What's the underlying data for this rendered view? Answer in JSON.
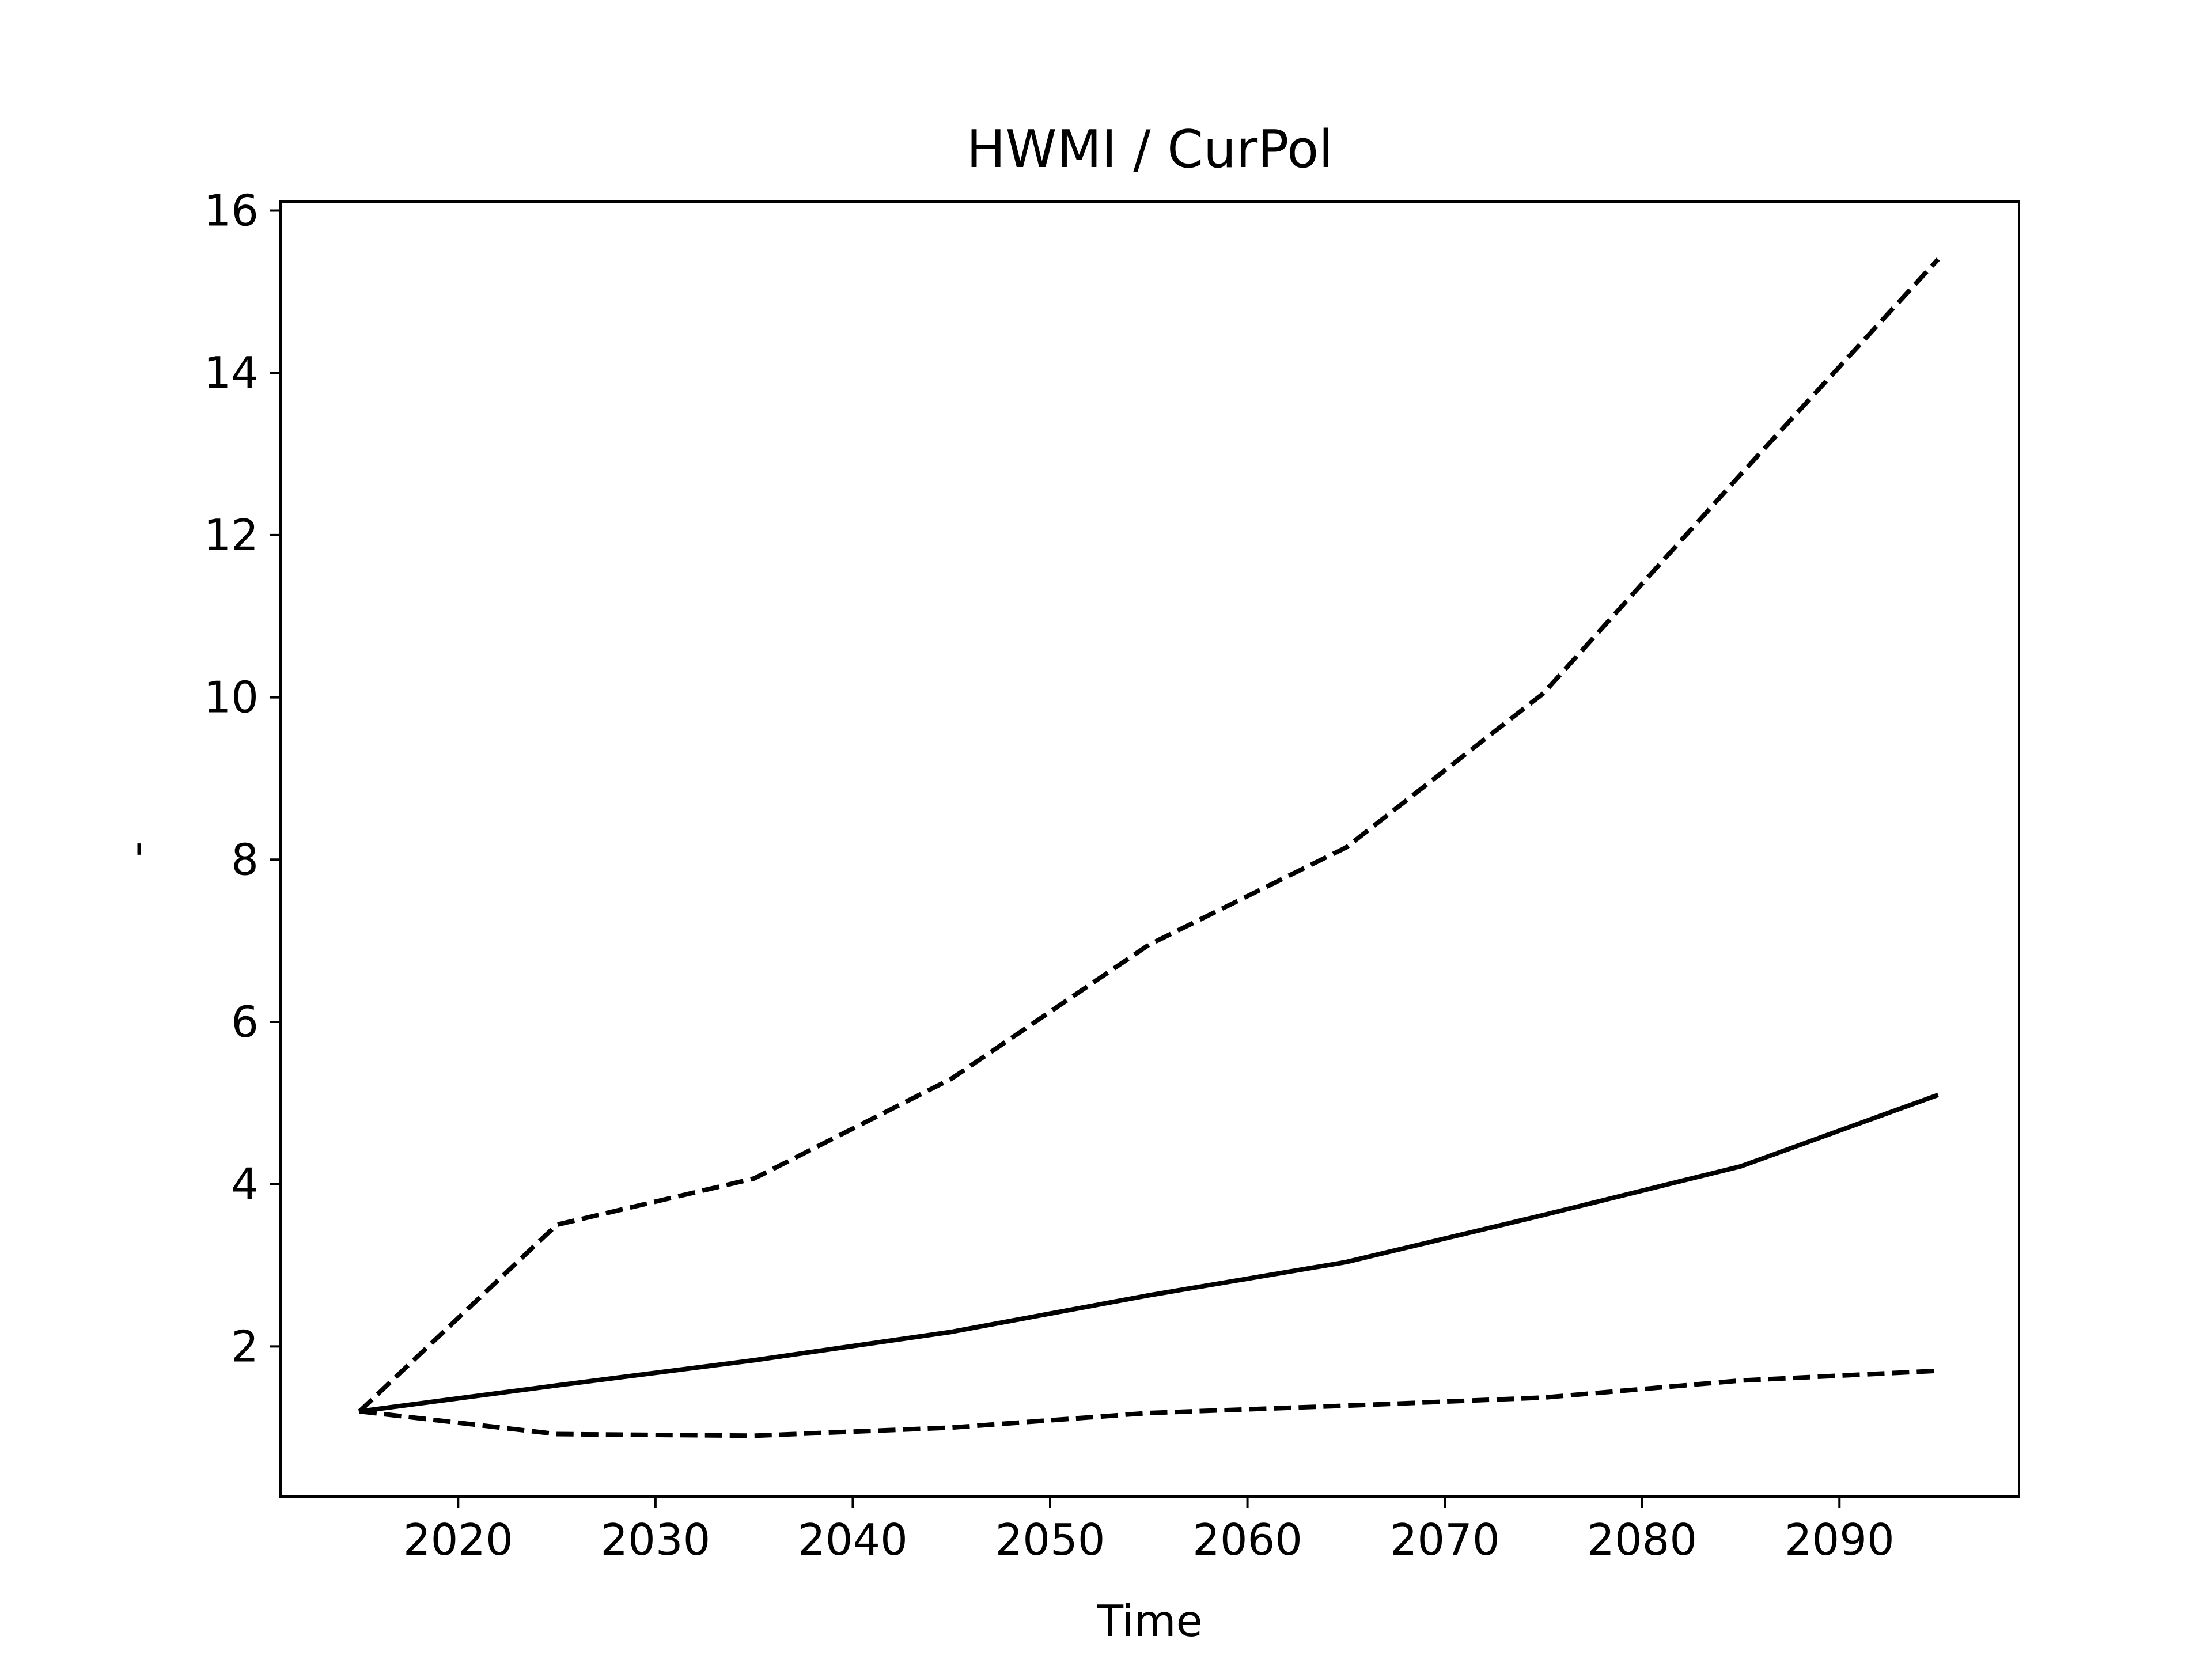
{
  "chart_data": {
    "type": "line",
    "title": "HWMI / CurPol",
    "xlabel": "Time",
    "ylabel": "-",
    "x": [
      2015,
      2025,
      2035,
      2045,
      2055,
      2065,
      2075,
      2085,
      2095
    ],
    "series": [
      {
        "color": "#000000",
        "linestyle": "dashed",
        "values": [
          1.2,
          3.5,
          4.07,
          5.3,
          6.95,
          8.15,
          10.05,
          12.75,
          15.4
        ]
      },
      {
        "color": "#000000",
        "linestyle": "solid",
        "values": [
          1.2,
          1.52,
          1.83,
          2.18,
          2.63,
          3.04,
          3.62,
          4.22,
          5.1
        ]
      },
      {
        "color": "#000000",
        "linestyle": "dashed",
        "values": [
          1.2,
          0.92,
          0.9,
          1.0,
          1.18,
          1.27,
          1.37,
          1.58,
          1.7
        ]
      }
    ],
    "xlim": [
      2011,
      2099.1
    ],
    "ylim": [
      0.15,
      16.11
    ],
    "xticks": [
      2020,
      2030,
      2040,
      2050,
      2060,
      2070,
      2080,
      2090
    ],
    "yticks": [
      2,
      4,
      6,
      8,
      10,
      12,
      14,
      16
    ],
    "grid": false
  }
}
